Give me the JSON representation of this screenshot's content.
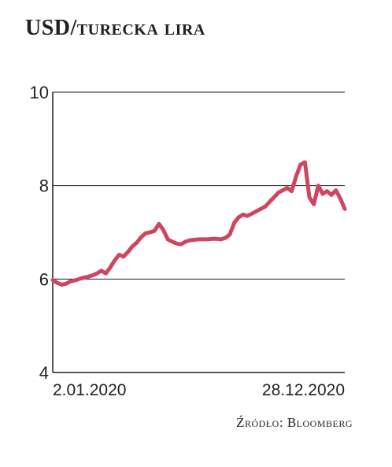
{
  "chart_data": {
    "type": "line",
    "title_main": "USD/",
    "title_rest": "turecka lira",
    "source": "Źródło: Bloomberg",
    "ylim": [
      4,
      10
    ],
    "yticks": [
      "10",
      "8",
      "6",
      "4"
    ],
    "x_labels": [
      "2.01.2020",
      "28.12.2020"
    ],
    "grid": true,
    "line_color": "#cf4560",
    "series": [
      {
        "values": [
          5.98,
          5.92,
          5.88,
          5.9,
          5.95,
          5.97,
          6.0,
          6.03,
          6.05,
          6.08,
          6.12,
          6.18,
          6.12,
          6.25,
          6.4,
          6.52,
          6.48,
          6.58,
          6.7,
          6.78,
          6.9,
          6.98,
          7.0,
          7.03,
          7.18,
          7.05,
          6.85,
          6.8,
          6.76,
          6.74,
          6.8,
          6.83,
          6.84,
          6.85,
          6.85,
          6.85,
          6.86,
          6.86,
          6.85,
          6.88,
          6.95,
          7.2,
          7.32,
          7.38,
          7.35,
          7.4,
          7.45,
          7.5,
          7.55,
          7.65,
          7.75,
          7.85,
          7.9,
          7.95,
          7.88,
          8.2,
          8.45,
          8.5,
          7.75,
          7.6,
          8.0,
          7.82,
          7.88,
          7.8,
          7.9,
          7.72,
          7.5
        ]
      }
    ]
  }
}
